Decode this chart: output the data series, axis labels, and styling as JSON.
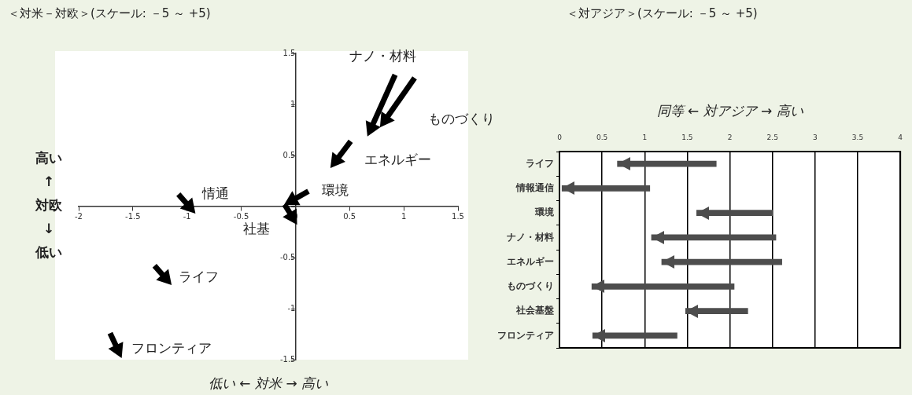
{
  "chart_data": [
    {
      "type": "line",
      "title": "＜対米－対欧＞(スケール: －5 ～ +5)",
      "xlabel": "低い ← 対米 → 高い",
      "ylabel": "高い\n↑\n対欧\n↓\n低い",
      "marker": "triangle",
      "grid": false,
      "xlim": [
        -2,
        1.5
      ],
      "xticks": [
        -2,
        -1.5,
        -1,
        -0.5,
        0,
        0.5,
        1,
        1.5
      ],
      "ylim": [
        -1.5,
        1.5
      ],
      "yticks": [
        -1.5,
        -1,
        -0.5,
        {
          "value": 0,
          "label": null
        },
        0.5,
        1,
        1.5
      ],
      "series": [
        {
          "name": "ナノ・材料",
          "color": "#000000",
          "x": [
            0.92,
            0.7
          ],
          "values": [
            1.29,
            0.77
          ]
        },
        {
          "name": "ものづくり",
          "color": "#000000",
          "x": [
            1.1,
            0.83
          ],
          "values": [
            1.26,
            0.85
          ]
        },
        {
          "name": "エネルギー",
          "color": "#000000",
          "x": [
            0.51,
            0.375
          ],
          "values": [
            0.64,
            0.45
          ]
        },
        {
          "name": "環境",
          "color": "#000000",
          "x": [
            0.12,
            -0.03
          ],
          "values": [
            0.15,
            0.06
          ]
        },
        {
          "name": "社基",
          "color": "#000000",
          "x": [
            -0.1,
            -0.03
          ],
          "values": [
            0.02,
            -0.1
          ]
        },
        {
          "name": "情通",
          "color": "#000000",
          "x": [
            -1.08,
            -0.98
          ],
          "values": [
            0.12,
            0.0
          ]
        },
        {
          "name": "ライフ",
          "color": "#000000",
          "x": [
            -1.3,
            -1.2
          ],
          "values": [
            -0.58,
            -0.7
          ]
        },
        {
          "name": "フロンティア",
          "color": "#000000",
          "x": [
            -1.71,
            -1.64
          ],
          "values": [
            -1.24,
            -1.4
          ]
        }
      ]
    },
    {
      "type": "bar",
      "orientation": "horizontal",
      "title": "＜対アジア＞(スケール: －5 ～ +5)",
      "xlabel": "同等 ← 対アジア → 高い",
      "grid": "x",
      "categories": [
        "ライフ",
        "情報通信",
        "環境",
        "ナノ・材料",
        "エネルギー",
        "ものづくり",
        "社会基盤",
        "フロンティア"
      ],
      "xlim": [
        0,
        4
      ],
      "xticks": [
        0,
        0.5,
        1,
        1.5,
        2,
        2.5,
        3,
        3.5,
        4
      ],
      "series": [
        {
          "color": "#4d4d4d",
          "base": [
            0.68,
            0.03,
            1.61,
            1.08,
            1.2,
            0.38,
            1.48,
            0.39
          ],
          "values": [
            1.16,
            1.03,
            0.89,
            1.46,
            1.41,
            1.67,
            0.73,
            0.99
          ]
        }
      ]
    }
  ]
}
